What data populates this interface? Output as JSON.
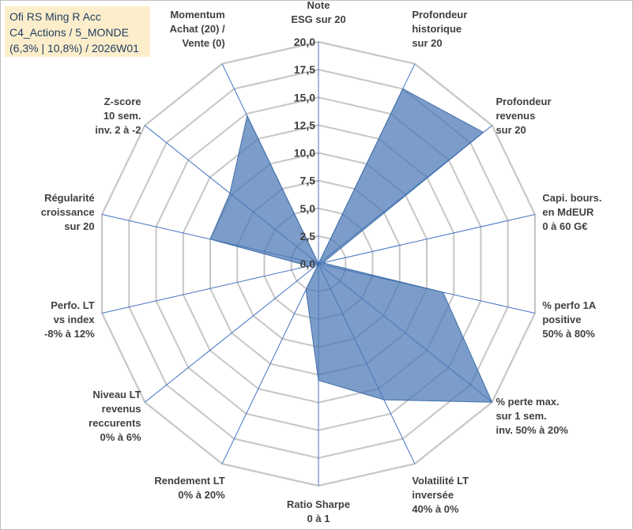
{
  "chart_data": {
    "type": "radar",
    "title_lines": [
      "Ofi RS Ming R Acc",
      "C4_Actions / 5_MONDE",
      "(6,3% | 10,8%) / 2026W01"
    ],
    "rmin": 0,
    "rmax": 20,
    "tick_labels": [
      "0,0",
      "2,5",
      "5,0",
      "7,5",
      "10,0",
      "12,5",
      "15,0",
      "17,5",
      "20,0"
    ],
    "ticks": [
      0,
      2.5,
      5,
      7.5,
      10,
      12.5,
      15,
      17.5,
      20
    ],
    "axes": [
      {
        "label": [
          "Note",
          "ESG sur 20"
        ],
        "value": 0
      },
      {
        "label": [
          "Profondeur",
          "historique",
          "sur 20"
        ],
        "value": 17.5
      },
      {
        "label": [
          "Profondeur",
          "revenus",
          "sur 20"
        ],
        "value": 19
      },
      {
        "label": [
          "Capi. bours.",
          "en MdEUR",
          "0 à 60 G€"
        ],
        "value": 0.4
      },
      {
        "label": [
          "% perfo 1A",
          "positive",
          "50% à 80%"
        ],
        "value": 11.5
      },
      {
        "label": [
          "% perte max.",
          "sur 1 sem.",
          "inv. 50% à 20%"
        ],
        "value": 20
      },
      {
        "label": [
          "Volatilité LT",
          "inversée",
          "40% à 0%"
        ],
        "value": 13.6
      },
      {
        "label": [
          "Ratio Sharpe",
          "0 à 1"
        ],
        "value": 10.5
      },
      {
        "label": [
          "Rendement LT",
          "0% à 20%"
        ],
        "value": 2.6
      },
      {
        "label": [
          "Niveau LT",
          "revenus",
          "reccurents",
          "0% à 6%"
        ],
        "value": 0
      },
      {
        "label": [
          "Perfo. LT",
          "vs index",
          "-8% à 12%"
        ],
        "value": 0.9
      },
      {
        "label": [
          "Régularité",
          "croissance",
          "sur 20"
        ],
        "value": 10
      },
      {
        "label": [
          "Z-score",
          "10 sem.",
          "inv. 2 à -2"
        ],
        "value": 10.2
      },
      {
        "label": [
          "Momentum",
          "Achat (20) /",
          "Vente (0)"
        ],
        "value": 14.8
      }
    ],
    "colors": {
      "fill": "#4a77b4",
      "fill_opacity": "0.72",
      "stroke": "#3f6ea8",
      "grid": "#c6c6c6",
      "axis_line": "#4472c4",
      "text": "#404040"
    }
  }
}
